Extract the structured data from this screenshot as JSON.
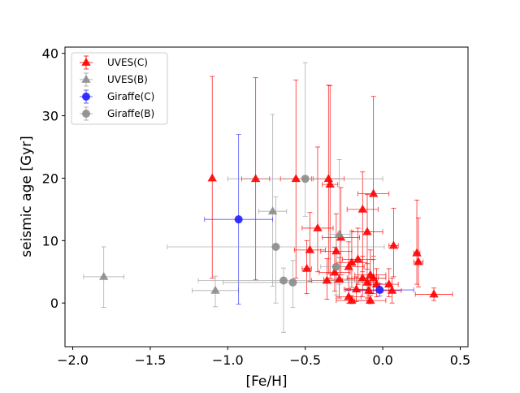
{
  "chart_data": {
    "type": "scatter",
    "xlabel": "[Fe/H]",
    "ylabel": "seismic age [Gyr]",
    "xlim": [
      -2.05,
      0.55
    ],
    "ylim": [
      -7.0,
      41.0
    ],
    "x_ticks": [
      -2.0,
      -1.5,
      -1.0,
      -0.5,
      0.0,
      0.5
    ],
    "x_tick_labels": [
      "−2.0",
      "−1.5",
      "−1.0",
      "−0.5",
      "0.0",
      "0.5"
    ],
    "y_ticks": [
      0,
      10,
      20,
      30,
      40
    ],
    "y_tick_labels": [
      "0",
      "10",
      "20",
      "30",
      "40"
    ],
    "legend_position": "top-left",
    "series": [
      {
        "name": "UVES(C)",
        "marker": "triangle",
        "color": "#ff0000",
        "error_color": "#ff0000",
        "points": [
          {
            "x": -1.1,
            "y": 20.0,
            "xerr": 0.0,
            "yerr_low": 16.0,
            "yerr_high": 16.3
          },
          {
            "x": -0.82,
            "y": 19.9,
            "xerr": 0.09,
            "yerr_low": 16.2,
            "yerr_high": 16.2
          },
          {
            "x": -0.56,
            "y": 19.9,
            "xerr": 0.1,
            "yerr_low": 15.9,
            "yerr_high": 15.8
          },
          {
            "x": -0.35,
            "y": 19.9,
            "xerr": 0.1,
            "yerr_low": 15.2,
            "yerr_high": 15.0
          },
          {
            "x": -0.34,
            "y": 19.0,
            "xerr": 0.05,
            "yerr_low": 15.0,
            "yerr_high": 15.8
          },
          {
            "x": -0.42,
            "y": 12.0,
            "xerr": 0.1,
            "yerr_low": 7.0,
            "yerr_high": 13.0
          },
          {
            "x": -0.13,
            "y": 15.0,
            "xerr": 0.1,
            "yerr_low": 10.0,
            "yerr_high": 6.0
          },
          {
            "x": -0.06,
            "y": 17.5,
            "xerr": 0.1,
            "yerr_low": 10.0,
            "yerr_high": 15.6
          },
          {
            "x": -0.1,
            "y": 11.4,
            "xerr": 0.1,
            "yerr_low": 6.0,
            "yerr_high": 6.0
          },
          {
            "x": -0.27,
            "y": 10.5,
            "xerr": 0.12,
            "yerr_low": 6.0,
            "yerr_high": 8.0
          },
          {
            "x": -0.47,
            "y": 8.5,
            "xerr": 0.1,
            "yerr_low": 5.0,
            "yerr_high": 6.0
          },
          {
            "x": -0.3,
            "y": 8.3,
            "xerr": 0.1,
            "yerr_low": 5.0,
            "yerr_high": 6.0
          },
          {
            "x": -0.2,
            "y": 6.5,
            "xerr": 0.1,
            "yerr_low": 4.0,
            "yerr_high": 5.0
          },
          {
            "x": -0.16,
            "y": 7.0,
            "xerr": 0.1,
            "yerr_low": 4.0,
            "yerr_high": 5.0
          },
          {
            "x": -0.22,
            "y": 5.8,
            "xerr": 0.1,
            "yerr_low": 3.5,
            "yerr_high": 4.0
          },
          {
            "x": -0.49,
            "y": 5.5,
            "xerr": 0.03,
            "yerr_low": 4.0,
            "yerr_high": 4.5
          },
          {
            "x": -0.31,
            "y": 4.9,
            "xerr": 0.1,
            "yerr_low": 3.0,
            "yerr_high": 4.0
          },
          {
            "x": -0.08,
            "y": 4.5,
            "xerr": 0.1,
            "yerr_low": 3.0,
            "yerr_high": 4.0
          },
          {
            "x": -0.13,
            "y": 4.0,
            "xerr": 0.1,
            "yerr_low": 3.0,
            "yerr_high": 3.5
          },
          {
            "x": -0.06,
            "y": 4.0,
            "xerr": 0.08,
            "yerr_low": 2.5,
            "yerr_high": 3.0
          },
          {
            "x": -0.36,
            "y": 3.6,
            "xerr": 0.1,
            "yerr_low": 3.0,
            "yerr_high": 3.5
          },
          {
            "x": -0.28,
            "y": 3.8,
            "xerr": 0.1,
            "yerr_low": 3.0,
            "yerr_high": 3.5
          },
          {
            "x": -0.1,
            "y": 3.3,
            "xerr": 0.06,
            "yerr_low": 2.5,
            "yerr_high": 3.0
          },
          {
            "x": -0.04,
            "y": 3.0,
            "xerr": 0.06,
            "yerr_low": 2.0,
            "yerr_high": 2.5
          },
          {
            "x": 0.04,
            "y": 3.0,
            "xerr": 0.06,
            "yerr_low": 2.0,
            "yerr_high": 2.5
          },
          {
            "x": -0.17,
            "y": 2.2,
            "xerr": 0.08,
            "yerr_low": 2.0,
            "yerr_high": 2.0
          },
          {
            "x": -0.09,
            "y": 2.0,
            "xerr": 0.08,
            "yerr_low": 2.0,
            "yerr_high": 2.0
          },
          {
            "x": 0.06,
            "y": 2.0,
            "xerr": 0.06,
            "yerr_low": 2.0,
            "yerr_high": 2.0
          },
          {
            "x": -0.22,
            "y": 1.0,
            "xerr": 0.08,
            "yerr_low": 1.0,
            "yerr_high": 1.0
          },
          {
            "x": -0.2,
            "y": 0.4,
            "xerr": 0.1,
            "yerr_low": 0.5,
            "yerr_high": 0.8
          },
          {
            "x": -0.08,
            "y": 0.4,
            "xerr": 0.1,
            "yerr_low": 0.5,
            "yerr_high": 0.8
          },
          {
            "x": 0.07,
            "y": 9.2,
            "xerr": 0.03,
            "yerr_low": 5.0,
            "yerr_high": 6.0
          },
          {
            "x": 0.22,
            "y": 8.0,
            "xerr": 0.02,
            "yerr_low": 5.0,
            "yerr_high": 8.5
          },
          {
            "x": 0.23,
            "y": 6.6,
            "xerr": 0.03,
            "yerr_low": 4.0,
            "yerr_high": 7.0
          },
          {
            "x": 0.33,
            "y": 1.4,
            "xerr": 0.12,
            "yerr_low": 1.0,
            "yerr_high": 1.0
          }
        ]
      },
      {
        "name": "UVES(B)",
        "marker": "triangle",
        "color": "#8c8c8c",
        "error_color": "#a0a0a0",
        "points": [
          {
            "x": -1.8,
            "y": 4.2,
            "xerr": 0.13,
            "yerr_low": 4.9,
            "yerr_high": 4.8
          },
          {
            "x": -1.08,
            "y": 2.0,
            "xerr": 0.15,
            "yerr_low": 2.6,
            "yerr_high": 2.3
          },
          {
            "x": -0.71,
            "y": 14.7,
            "xerr": 0.09,
            "yerr_low": 12.0,
            "yerr_high": 15.5
          },
          {
            "x": -0.28,
            "y": 11.0,
            "xerr": 0.07,
            "yerr_low": 8.0,
            "yerr_high": 12.0
          }
        ]
      },
      {
        "name": "Giraffe(C)",
        "marker": "circle",
        "color": "#1f1fff",
        "error_color": "#3a3aff",
        "points": [
          {
            "x": -0.93,
            "y": 13.4,
            "xerr": 0.22,
            "yerr_low": 13.6,
            "yerr_high": 13.6
          },
          {
            "x": -0.02,
            "y": 2.1,
            "xerr": 0.22,
            "yerr_low": 1.0,
            "yerr_high": 1.0
          }
        ]
      },
      {
        "name": "Giraffe(B)",
        "marker": "circle",
        "color": "#8c8c8c",
        "error_color": "#a0a0a0",
        "points": [
          {
            "x": -0.5,
            "y": 19.9,
            "xerr": 0.5,
            "yerr_low": 6.0,
            "yerr_high": 18.6
          },
          {
            "x": -0.69,
            "y": 9.0,
            "xerr": 0.7,
            "yerr_low": 9.0,
            "yerr_high": 8.0
          },
          {
            "x": -0.64,
            "y": 3.6,
            "xerr": 0.55,
            "yerr_low": 8.3,
            "yerr_high": 2.0
          },
          {
            "x": -0.58,
            "y": 3.3,
            "xerr": 0.45,
            "yerr_low": 4.0,
            "yerr_high": 3.5
          },
          {
            "x": -0.3,
            "y": 5.8,
            "xerr": 0.1,
            "yerr_low": 4.5,
            "yerr_high": 5.0
          }
        ]
      }
    ]
  }
}
